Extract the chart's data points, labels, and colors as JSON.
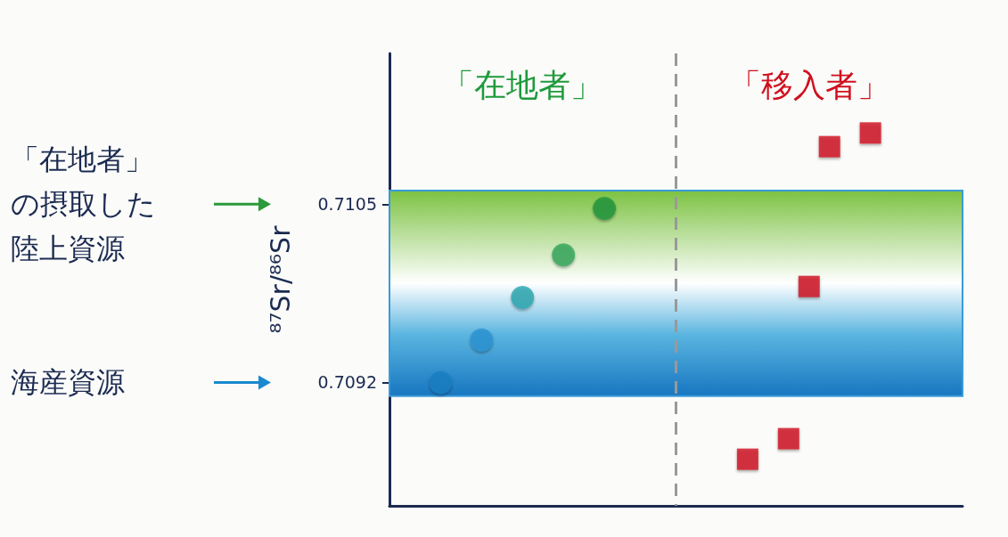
{
  "chart_data": {
    "type": "scatter",
    "ylabel": "⁸⁷Sr/⁸⁶Sr",
    "categories": [
      null,
      null,
      null,
      null,
      null,
      null,
      null,
      null,
      null,
      null,
      null,
      null,
      null,
      null,
      null,
      null,
      null,
      null,
      null,
      null,
      null,
      null,
      null,
      null,
      null,
      null,
      null,
      null
    ],
    "series": [
      {
        "name": "「在地者」",
        "color": "#1f9a3c",
        "marker": "circle",
        "colors": [
          null,
          null,
          "#1a7fc4",
          null,
          "#2a95d4",
          null,
          "#2aa8b0",
          null,
          "#35a85a",
          null,
          "#23963c",
          null,
          null,
          null,
          null,
          null,
          null,
          null,
          null,
          null,
          null,
          null,
          null,
          null,
          null,
          null,
          null,
          null
        ],
        "values": [
          null,
          null,
          0.7092,
          null,
          0.70951,
          null,
          0.70982,
          null,
          0.71013,
          null,
          0.71047,
          null,
          null,
          null,
          null,
          null,
          null,
          null,
          null,
          null,
          null,
          null,
          null,
          null,
          null,
          null,
          null,
          null
        ]
      },
      {
        "name": "「移入者」",
        "color": "#d0101e",
        "marker": "square",
        "values": [
          null,
          null,
          null,
          null,
          null,
          null,
          null,
          null,
          null,
          null,
          null,
          null,
          null,
          null,
          null,
          null,
          null,
          0.70864,
          null,
          0.70879,
          0.7099,
          0.71092,
          null,
          0.71102,
          null,
          null,
          null,
          null
        ]
      }
    ],
    "ylim": [
      0.7083,
      0.7116
    ],
    "yticks": [
      0.7092,
      0.7105
    ],
    "grid": false,
    "tick_labels": "y",
    "bands": [
      {
        "axis": "y",
        "from": 0.7091,
        "to": 0.7106,
        "color": "#3a9ad9"
      }
    ],
    "annotations": [
      "「在地者」の摂取した陸上資源",
      "海産資源"
    ]
  }
}
